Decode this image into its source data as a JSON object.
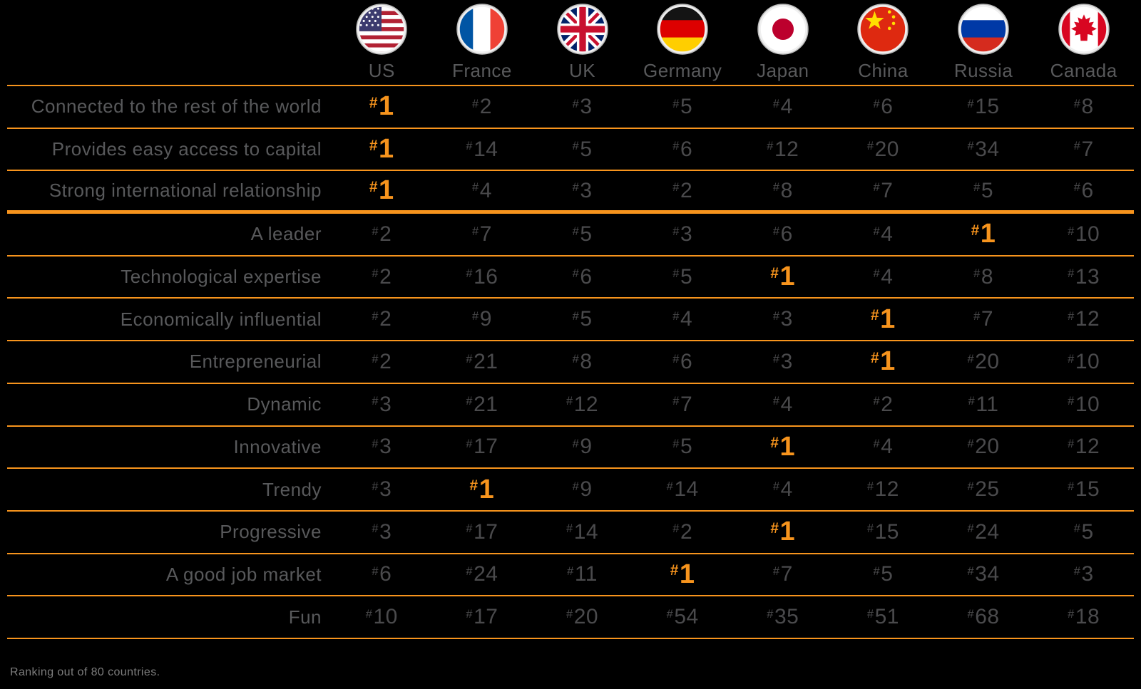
{
  "footer": {
    "note": "Ranking out of 80 countries."
  },
  "chart_data": {
    "type": "table",
    "title": "",
    "legend_position": "none",
    "grid": "horizontal-orange-rules",
    "highlight_value": 1,
    "colors": {
      "background": "#000000",
      "accent_orange": "#F7941D",
      "text_gray": "#58595B",
      "value_gray": "#4A4A4C"
    },
    "columns": [
      {
        "label": "US",
        "icon": "us-flag-icon"
      },
      {
        "label": "France",
        "icon": "france-flag-icon"
      },
      {
        "label": "UK",
        "icon": "uk-flag-icon"
      },
      {
        "label": "Germany",
        "icon": "germany-flag-icon"
      },
      {
        "label": "Japan",
        "icon": "japan-flag-icon"
      },
      {
        "label": "China",
        "icon": "china-flag-icon"
      },
      {
        "label": "Russia",
        "icon": "russia-flag-icon"
      },
      {
        "label": "Canada",
        "icon": "canada-flag-icon"
      }
    ],
    "rows": [
      {
        "label": "Connected to the rest of the world",
        "values": [
          1,
          2,
          3,
          5,
          4,
          6,
          15,
          8
        ]
      },
      {
        "label": "Provides easy access to capital",
        "values": [
          1,
          14,
          5,
          6,
          12,
          20,
          34,
          7
        ]
      },
      {
        "label": "Strong international relationship",
        "values": [
          1,
          4,
          3,
          2,
          8,
          7,
          5,
          6
        ],
        "section_end": true
      },
      {
        "label": "A leader",
        "values": [
          2,
          7,
          5,
          3,
          6,
          4,
          1,
          10
        ]
      },
      {
        "label": "Technological expertise",
        "values": [
          2,
          16,
          6,
          5,
          1,
          4,
          8,
          13
        ]
      },
      {
        "label": "Economically influential",
        "values": [
          2,
          9,
          5,
          4,
          3,
          1,
          7,
          12
        ]
      },
      {
        "label": "Entrepreneurial",
        "values": [
          2,
          21,
          8,
          6,
          3,
          1,
          20,
          10
        ]
      },
      {
        "label": "Dynamic",
        "values": [
          3,
          21,
          12,
          7,
          4,
          2,
          11,
          10
        ]
      },
      {
        "label": "Innovative",
        "values": [
          3,
          17,
          9,
          5,
          1,
          4,
          20,
          12
        ]
      },
      {
        "label": "Trendy",
        "values": [
          3,
          1,
          9,
          14,
          4,
          12,
          25,
          15
        ]
      },
      {
        "label": "Progressive",
        "values": [
          3,
          17,
          14,
          2,
          1,
          15,
          24,
          5
        ]
      },
      {
        "label": "A good job market",
        "values": [
          6,
          24,
          11,
          1,
          7,
          5,
          34,
          3
        ]
      },
      {
        "label": "Fun",
        "values": [
          10,
          17,
          20,
          54,
          35,
          51,
          68,
          18
        ]
      }
    ]
  }
}
